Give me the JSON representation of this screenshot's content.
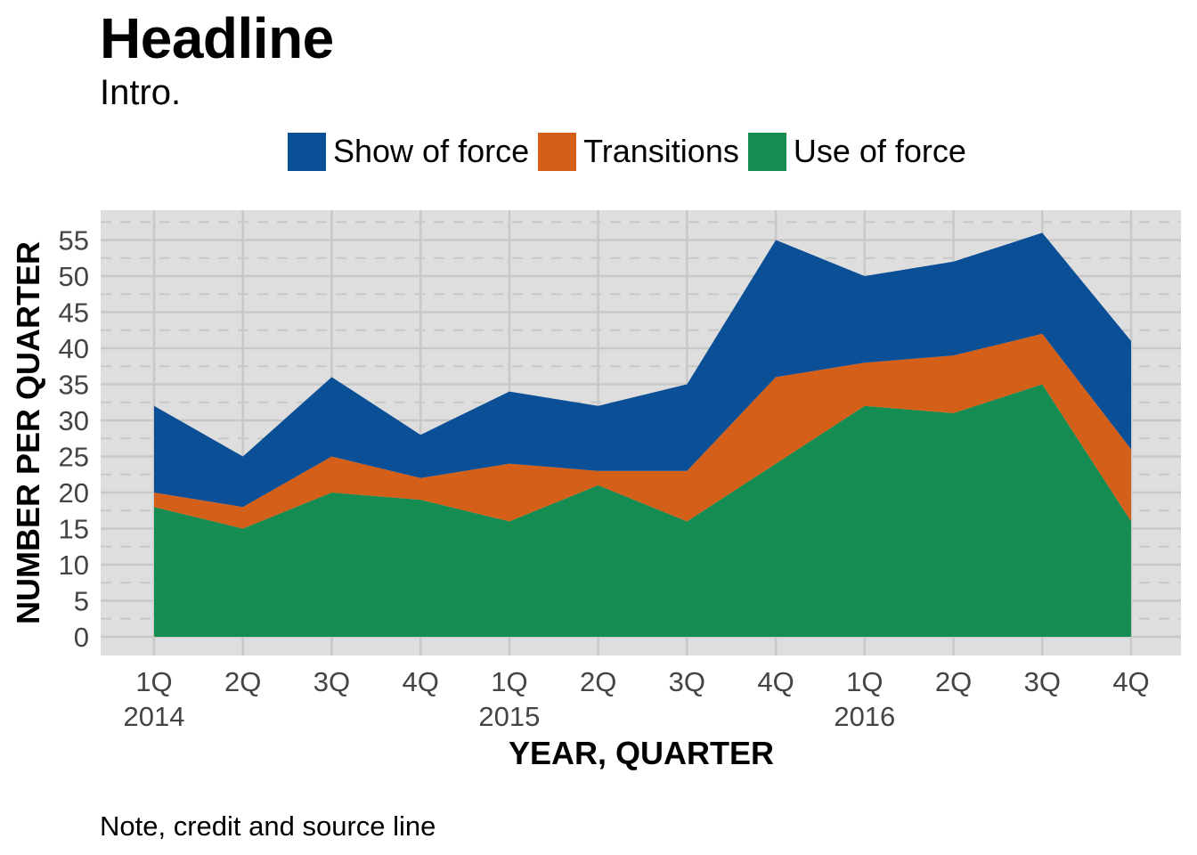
{
  "header": {
    "title": "Headline",
    "subtitle": "Intro."
  },
  "footer": {
    "note": "Note, credit and source line"
  },
  "colors": {
    "show_of_force": "#0b4f96",
    "transitions": "#d45f18",
    "use_of_force": "#158c52",
    "panel_bg": "#dedede",
    "grid": "#c8c8c8"
  },
  "chart_data": {
    "type": "area",
    "stacked": true,
    "title": "Headline",
    "subtitle": "Intro.",
    "xlabel": "YEAR, QUARTER",
    "ylabel": "NUMBER PER QUARTER",
    "ylim": [
      0,
      57
    ],
    "yticks": [
      0,
      5,
      10,
      15,
      20,
      25,
      30,
      35,
      40,
      45,
      50,
      55
    ],
    "categories": [
      "1Q 2014",
      "2Q 2014",
      "3Q 2014",
      "4Q 2014",
      "1Q 2015",
      "2Q 2015",
      "3Q 2015",
      "4Q 2015",
      "1Q 2016",
      "2Q 2016",
      "3Q 2016",
      "4Q 2016"
    ],
    "tick_quarters": [
      "1Q",
      "2Q",
      "3Q",
      "4Q",
      "1Q",
      "2Q",
      "3Q",
      "4Q",
      "1Q",
      "2Q",
      "3Q",
      "4Q"
    ],
    "tick_years": [
      "2014",
      "",
      "",
      "",
      "2015",
      "",
      "",
      "",
      "2016",
      "",
      "",
      ""
    ],
    "legend_position": "top",
    "grid": true,
    "series": [
      {
        "name": "Use of force",
        "values": [
          18,
          15,
          20,
          19,
          16,
          21,
          16,
          24,
          32,
          31,
          35,
          16
        ]
      },
      {
        "name": "Transitions",
        "values": [
          2,
          3,
          5,
          3,
          8,
          2,
          7,
          12,
          6,
          8,
          7,
          10
        ]
      },
      {
        "name": "Show of force",
        "values": [
          12,
          7,
          11,
          6,
          10,
          9,
          12,
          19,
          12,
          13,
          14,
          15
        ]
      }
    ],
    "legend_order": [
      "Show of force",
      "Transitions",
      "Use of force"
    ]
  }
}
